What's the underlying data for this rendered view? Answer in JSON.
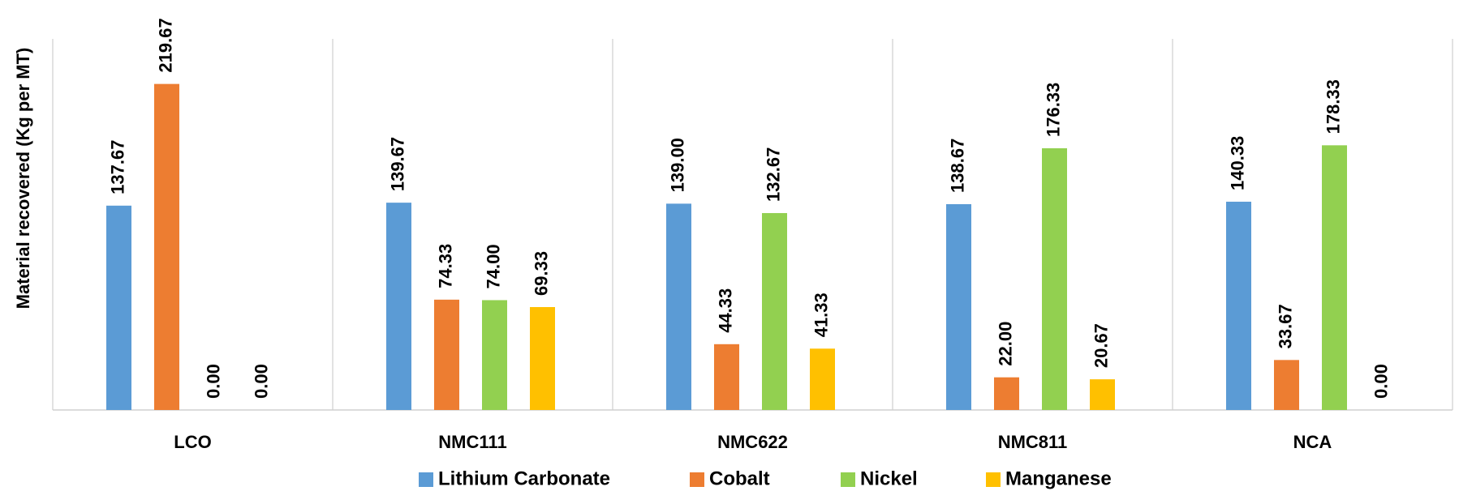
{
  "chart_data": {
    "type": "bar",
    "ylabel": "Material recovered (Kg per MT)",
    "xlabel": "",
    "title": "",
    "ylim": [
      0,
      250
    ],
    "grid": false,
    "legend_position": "bottom",
    "categories": [
      "LCO",
      "NMC111",
      "NMC622",
      "NMC811",
      "NCA"
    ],
    "series": [
      {
        "name": "Lithium Carbonate",
        "color": "#5B9BD5",
        "values": [
          137.67,
          139.67,
          139.0,
          138.67,
          140.33
        ],
        "labels": [
          "137.67",
          "139.67",
          "139.00",
          "138.67",
          "140.33"
        ]
      },
      {
        "name": "Cobalt",
        "color": "#ED7D31",
        "values": [
          219.67,
          74.33,
          44.33,
          22.0,
          33.67
        ],
        "labels": [
          "219.67",
          "74.33",
          "44.33",
          "22.00",
          "33.67"
        ]
      },
      {
        "name": "Nickel",
        "color": "#92D050",
        "values": [
          0.0,
          74.0,
          132.67,
          176.33,
          178.33
        ],
        "labels": [
          "0.00",
          "74.00",
          "132.67",
          "176.33",
          "178.33"
        ]
      },
      {
        "name": "Manganese",
        "color": "#FFC000",
        "values": [
          0.0,
          69.33,
          41.33,
          20.67,
          null
        ],
        "labels": [
          "0.00",
          "69.33",
          "41.33",
          "20.67",
          "0.00"
        ]
      }
    ]
  }
}
